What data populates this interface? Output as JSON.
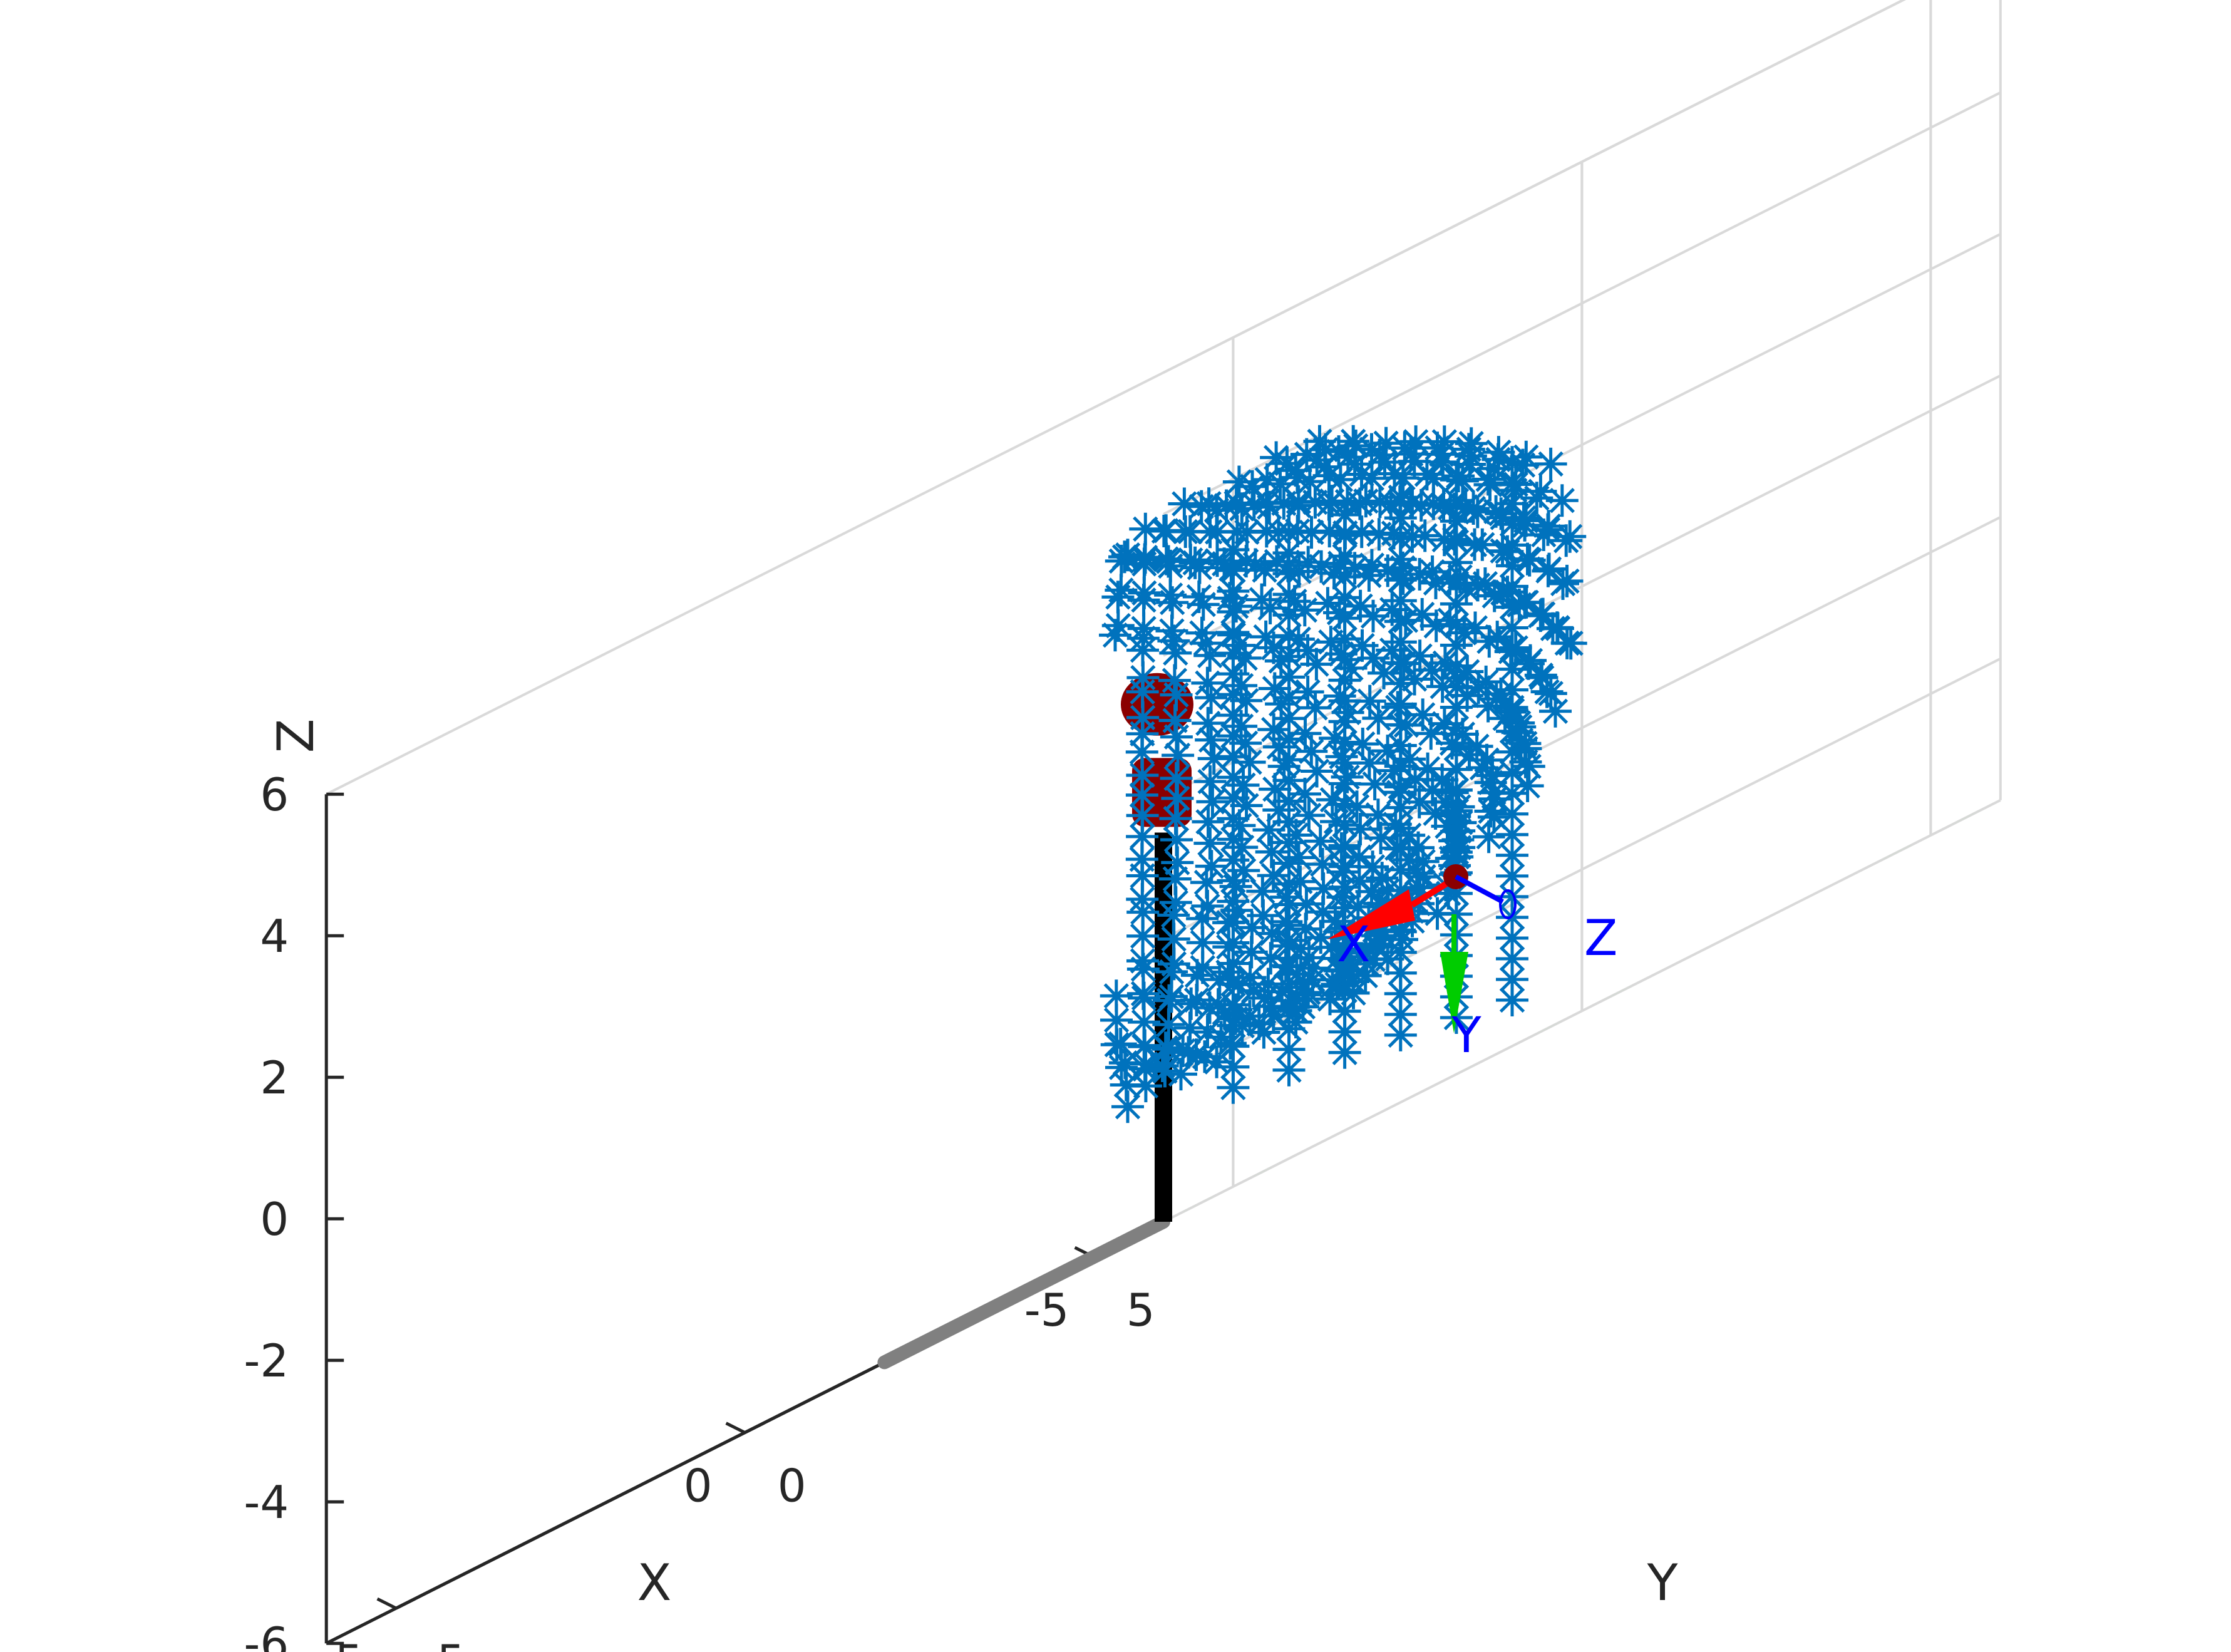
{
  "chart_data": {
    "type": "scatter",
    "title": "",
    "xlabel": "X",
    "ylabel": "Y",
    "zlabel": "Z",
    "xlim": [
      -6,
      6
    ],
    "ylim": [
      -6,
      6
    ],
    "zlim": [
      -6,
      6
    ],
    "x_ticks": [
      -5,
      0,
      5
    ],
    "y_ticks": [
      -5,
      0,
      5
    ],
    "z_ticks": [
      -6,
      -4,
      -2,
      0,
      2,
      4,
      6
    ],
    "x_tick_labels": [
      "-5",
      "0",
      "5"
    ],
    "y_tick_labels": [
      "-5",
      "0",
      "5"
    ],
    "z_tick_labels": [
      "-6",
      "-4",
      "-2",
      "0",
      "2",
      "4",
      "6"
    ],
    "grid": true,
    "legend": "none",
    "view": "isometric",
    "floor": {
      "colors": [
        "#8ce68c",
        "#d9d9d9"
      ],
      "z": -6
    },
    "series": [
      {
        "marker": "asterisk",
        "color": "#0072bd",
        "description_points": "workspace point cloud",
        "x_range": [
          -5,
          2
        ],
        "y_range": [
          -1,
          5
        ],
        "z_range": [
          -5,
          5
        ]
      }
    ],
    "robot": {
      "base_pillar": {
        "color": "#000000",
        "from": [
          0,
          0,
          -6
        ],
        "to": [
          0,
          0,
          -0.5
        ]
      },
      "base_rail": {
        "color": "#808080",
        "from": [
          0,
          0,
          -6
        ],
        "to": [
          4,
          0,
          -6
        ]
      },
      "joint_color": "#8b0000",
      "frame_labels": [
        "X",
        "Y",
        "Z"
      ],
      "frame_colors": {
        "x": "#ff0000",
        "y": "#00cc00",
        "z": "#0000ff",
        "label": "#0000ff"
      }
    }
  }
}
